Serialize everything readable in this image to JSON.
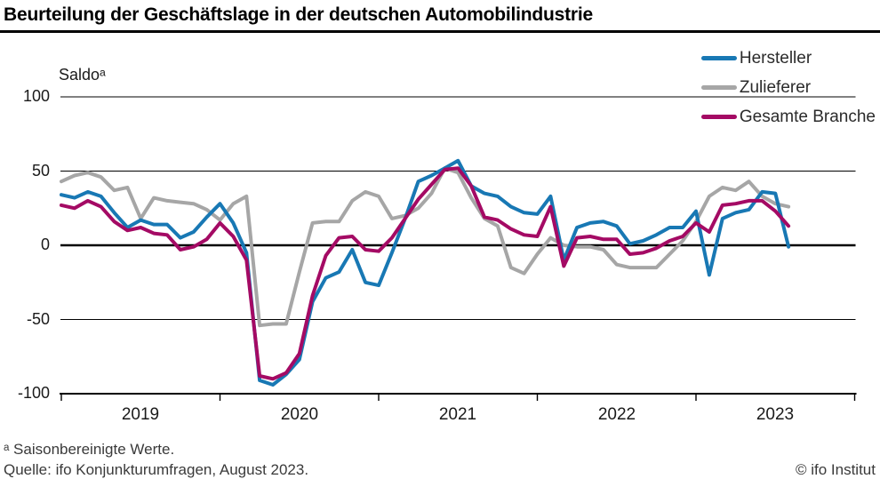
{
  "header": {
    "title": "Beurteilung der Geschäftslage in der deutschen Automobilindustrie"
  },
  "axis": {
    "unit_label": "Saldoᵃ",
    "y_ticks": [
      "100",
      "50",
      "0",
      "-50",
      "-100"
    ],
    "x_ticks": [
      "2019",
      "2020",
      "2021",
      "2022",
      "2023"
    ]
  },
  "footer": {
    "footnote": "ᵃ Saisonbereinigte Werte.",
    "source": "Quelle: ifo Konjunkturumfragen, August 2023.",
    "copyright": "© ifo Institut"
  },
  "chart_data": {
    "type": "line",
    "title": "Beurteilung der Geschäftslage in der deutschen Automobilindustrie",
    "xlabel": "",
    "ylabel": "Saldoᵃ",
    "ylim": [
      -100,
      100
    ],
    "yticks": [
      100,
      50,
      0,
      -50,
      -100
    ],
    "grid": "horizontal",
    "legend_position": "top-right",
    "x_unit": "month",
    "x_start": "2019-01",
    "x_end": "2023-08",
    "x_year_ticks": [
      2019,
      2020,
      2021,
      2022,
      2023
    ],
    "series": [
      {
        "name": "Hersteller",
        "color": "#1878b4",
        "z": 2,
        "values": [
          34,
          32,
          36,
          33,
          22,
          12,
          17,
          14,
          14,
          5,
          9,
          19,
          28,
          15,
          -5,
          -91,
          -94,
          -87,
          -77,
          -38,
          -22,
          -18,
          -3,
          -25,
          -27,
          -5,
          18,
          43,
          47,
          52,
          57,
          40,
          35,
          33,
          26,
          22,
          21,
          33,
          -10,
          12,
          15,
          16,
          13,
          1,
          3,
          7,
          12,
          12,
          23,
          -20,
          18,
          22,
          24,
          36,
          35,
          -1
        ]
      },
      {
        "name": "Zulieferer",
        "color": "#a6a6a6",
        "z": 1,
        "values": [
          43,
          47,
          49,
          46,
          37,
          39,
          18,
          32,
          30,
          29,
          28,
          24,
          17,
          28,
          33,
          -54,
          -53,
          -53,
          -18,
          15,
          16,
          16,
          30,
          36,
          33,
          18,
          20,
          25,
          35,
          52,
          49,
          32,
          18,
          13,
          -15,
          -19,
          -6,
          5,
          0,
          -1,
          -1,
          -3,
          -13,
          -15,
          -15,
          -15,
          -6,
          3,
          16,
          33,
          39,
          37,
          43,
          33,
          28,
          26
        ]
      },
      {
        "name": "Gesamte Branche",
        "color": "#a40a64",
        "z": 3,
        "values": [
          27,
          25,
          30,
          26,
          16,
          10,
          12,
          8,
          7,
          -3,
          -1,
          4,
          15,
          6,
          -10,
          -88,
          -90,
          -86,
          -73,
          -34,
          -7,
          5,
          6,
          -3,
          -4,
          5,
          18,
          31,
          41,
          51,
          52,
          40,
          19,
          17,
          11,
          7,
          6,
          26,
          -14,
          5,
          6,
          4,
          4,
          -6,
          -5,
          -2,
          3,
          6,
          15,
          9,
          27,
          28,
          30,
          30,
          23,
          13
        ]
      }
    ]
  }
}
